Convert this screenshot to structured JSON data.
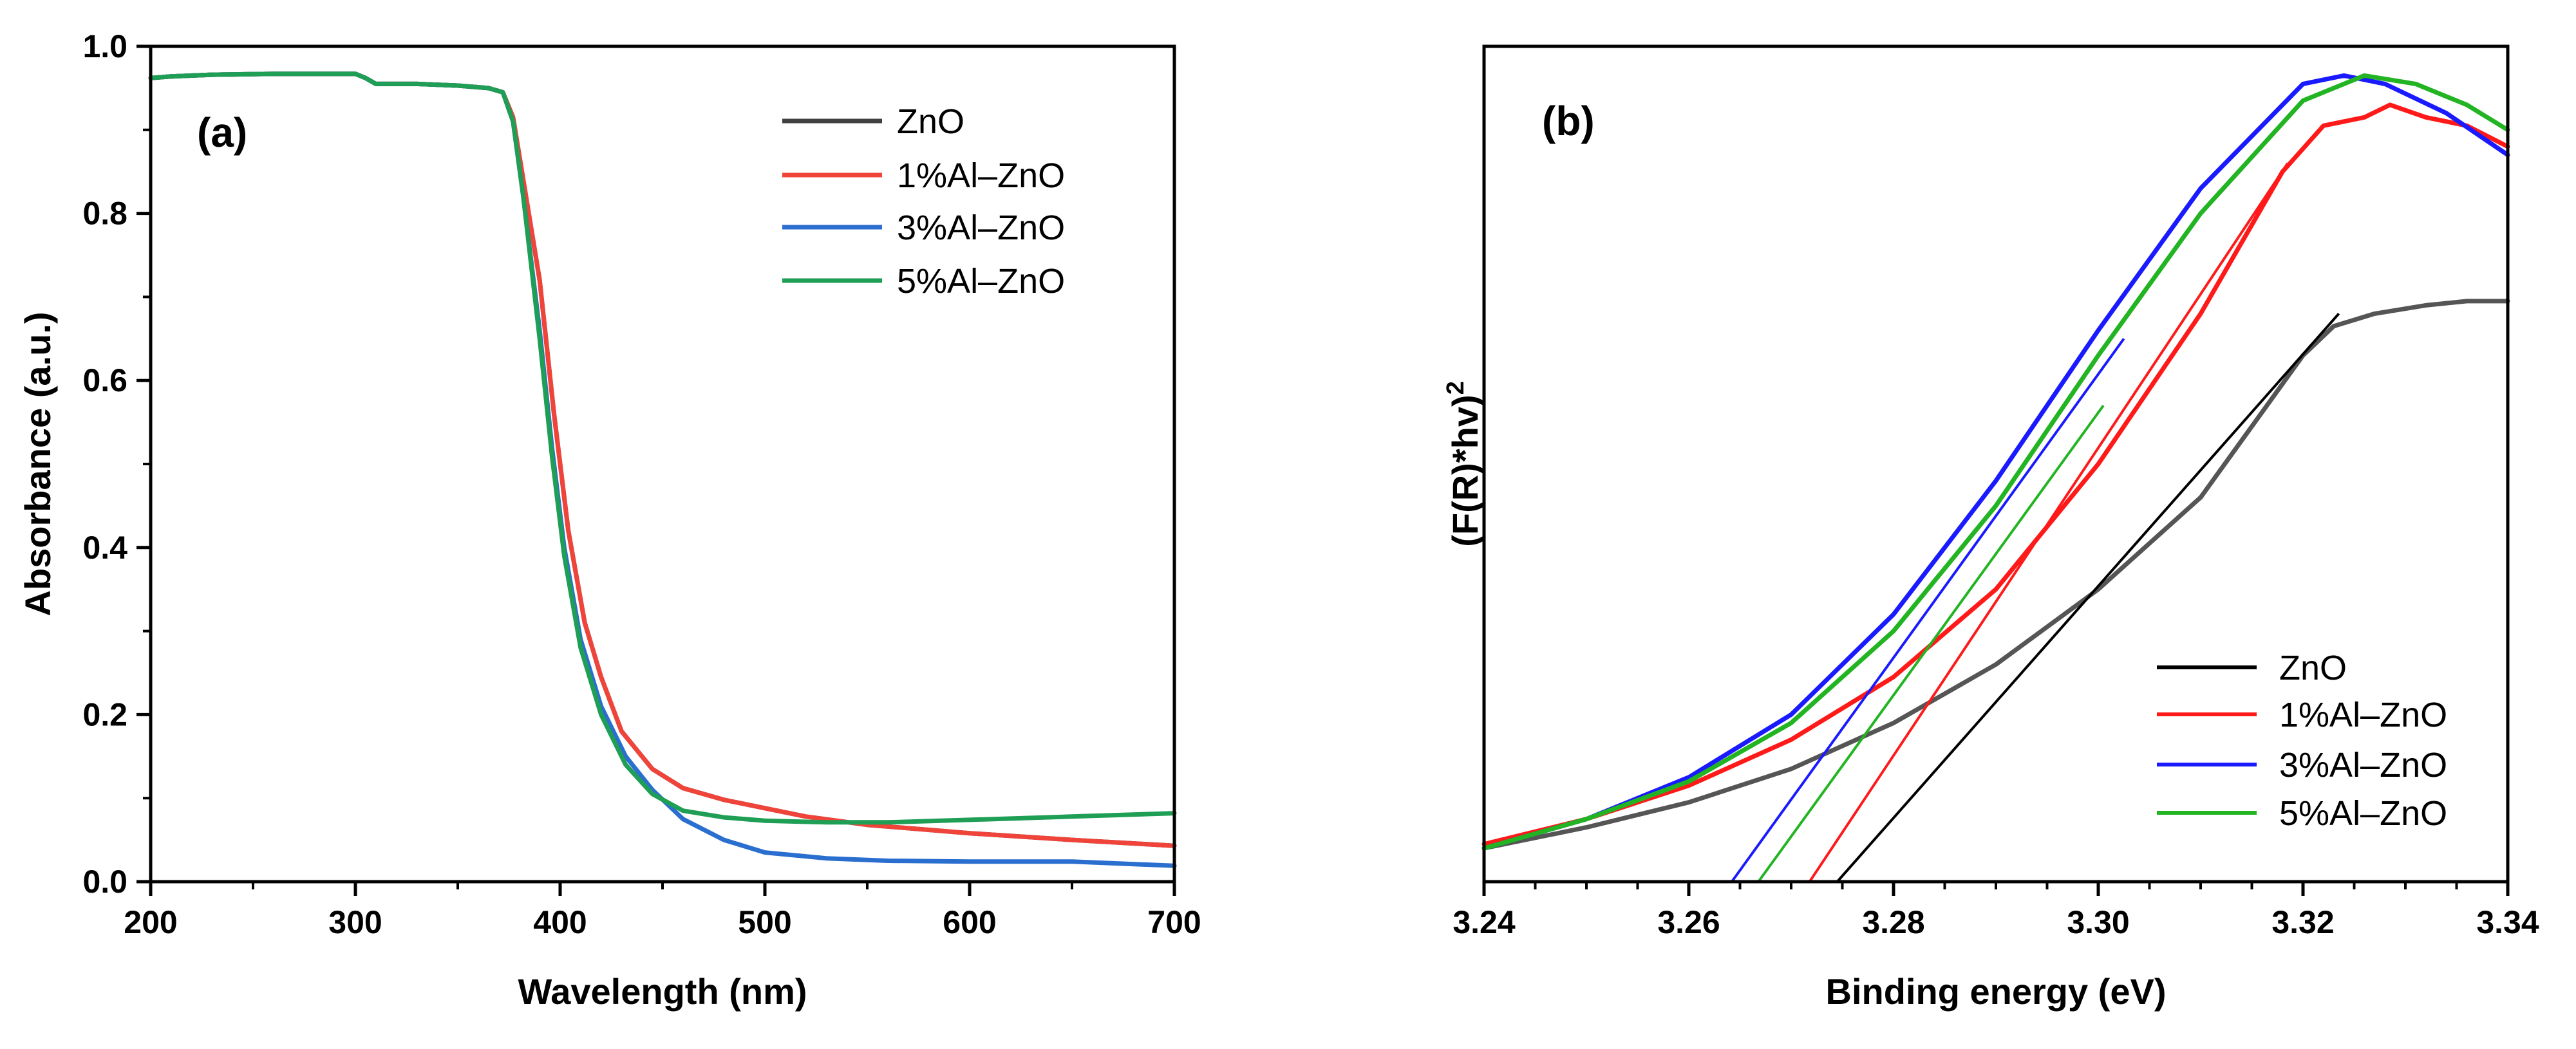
{
  "chart_data": [
    {
      "type": "line",
      "panel_label": "(a)",
      "xlabel": "Wavelength (nm)",
      "ylabel": "Absorbance (a.u.)",
      "xlim": [
        200,
        700
      ],
      "ylim": [
        0,
        1.0
      ],
      "xticks": [
        200,
        300,
        400,
        500,
        600,
        700
      ],
      "xtick_labels": [
        "200",
        "300",
        "400",
        "500",
        "600",
        "700"
      ],
      "yticks": [
        0,
        0.2,
        0.4,
        0.6,
        0.8,
        1.0
      ],
      "ytick_labels": [
        "0.0",
        "0.2",
        "0.4",
        "0.6",
        "0.8",
        "1.0"
      ],
      "legend_position": "top-right",
      "series": [
        {
          "name": "ZnO",
          "color": "#404040",
          "x": [
            200,
            210,
            230,
            260,
            290,
            300,
            305,
            310,
            330,
            350,
            365,
            372,
            377,
            382,
            390,
            397,
            404,
            412,
            420,
            430,
            445,
            460,
            480,
            500,
            520,
            550,
            600,
            650,
            700
          ],
          "y": [
            0.962,
            0.964,
            0.966,
            0.967,
            0.967,
            0.967,
            0.962,
            0.955,
            0.955,
            0.953,
            0.95,
            0.945,
            0.915,
            0.84,
            0.72,
            0.56,
            0.42,
            0.31,
            0.245,
            0.18,
            0.135,
            0.112,
            0.098,
            0.088,
            0.078,
            0.068,
            0.058,
            0.05,
            0.043
          ]
        },
        {
          "name": "1%Al–ZnO",
          "color": "#f0443a",
          "x": [
            200,
            210,
            230,
            260,
            290,
            300,
            305,
            310,
            330,
            350,
            365,
            372,
            377,
            382,
            390,
            397,
            404,
            412,
            420,
            430,
            445,
            460,
            480,
            500,
            520,
            550,
            600,
            650,
            700
          ],
          "y": [
            0.962,
            0.964,
            0.966,
            0.967,
            0.967,
            0.967,
            0.962,
            0.955,
            0.955,
            0.953,
            0.95,
            0.945,
            0.915,
            0.84,
            0.72,
            0.56,
            0.42,
            0.31,
            0.245,
            0.18,
            0.135,
            0.112,
            0.098,
            0.088,
            0.078,
            0.068,
            0.058,
            0.05,
            0.043
          ]
        },
        {
          "name": "3%Al–ZnO",
          "color": "#2a6fcf",
          "x": [
            200,
            210,
            230,
            260,
            290,
            300,
            305,
            310,
            330,
            350,
            365,
            372,
            377,
            382,
            390,
            396,
            402,
            410,
            420,
            432,
            445,
            460,
            480,
            500,
            530,
            560,
            600,
            650,
            670,
            700
          ],
          "y": [
            0.962,
            0.964,
            0.966,
            0.967,
            0.967,
            0.967,
            0.962,
            0.955,
            0.955,
            0.953,
            0.95,
            0.945,
            0.91,
            0.82,
            0.66,
            0.52,
            0.4,
            0.29,
            0.21,
            0.15,
            0.11,
            0.075,
            0.05,
            0.035,
            0.028,
            0.025,
            0.024,
            0.024,
            0.022,
            0.019
          ]
        },
        {
          "name": "5%Al–ZnO",
          "color": "#1f9e55",
          "x": [
            200,
            210,
            230,
            260,
            290,
            300,
            305,
            310,
            330,
            350,
            365,
            372,
            377,
            382,
            390,
            396,
            402,
            410,
            420,
            432,
            445,
            460,
            480,
            500,
            530,
            560,
            600,
            650,
            700
          ],
          "y": [
            0.962,
            0.964,
            0.966,
            0.967,
            0.967,
            0.967,
            0.962,
            0.955,
            0.955,
            0.953,
            0.95,
            0.945,
            0.91,
            0.82,
            0.65,
            0.51,
            0.39,
            0.28,
            0.2,
            0.14,
            0.105,
            0.085,
            0.077,
            0.073,
            0.071,
            0.071,
            0.074,
            0.078,
            0.082
          ]
        }
      ]
    },
    {
      "type": "line",
      "panel_label": "(b)",
      "xlabel": "Binding energy (eV)",
      "ylabel_main": "(F(R)*hv)",
      "ylabel_sup": "2",
      "xlim": [
        3.24,
        3.34
      ],
      "ylim": [
        0,
        1.0
      ],
      "xticks": [
        3.24,
        3.26,
        3.28,
        3.3,
        3.32,
        3.34
      ],
      "xtick_labels": [
        "3.24",
        "3.26",
        "3.28",
        "3.30",
        "3.32",
        "3.34"
      ],
      "yticks": [],
      "legend_position": "bottom-right",
      "series": [
        {
          "name": "ZnO",
          "color": "#000000",
          "line_color": "#555555",
          "x": [
            3.24,
            3.25,
            3.26,
            3.27,
            3.28,
            3.29,
            3.3,
            3.31,
            3.32,
            3.323,
            3.327,
            3.332,
            3.336,
            3.34
          ],
          "y": [
            0.04,
            0.065,
            0.095,
            0.135,
            0.19,
            0.26,
            0.35,
            0.46,
            0.63,
            0.665,
            0.68,
            0.69,
            0.695,
            0.695
          ],
          "fit_x": [
            3.2745,
            3.3235
          ],
          "fit_y": [
            0.0,
            0.68
          ]
        },
        {
          "name": "1%Al–ZnO",
          "color": "#ff1a1a",
          "x": [
            3.24,
            3.25,
            3.26,
            3.27,
            3.28,
            3.29,
            3.3,
            3.31,
            3.318,
            3.322,
            3.326,
            3.3285,
            3.332,
            3.336,
            3.34
          ],
          "y": [
            0.045,
            0.075,
            0.115,
            0.17,
            0.245,
            0.35,
            0.5,
            0.68,
            0.85,
            0.905,
            0.915,
            0.93,
            0.915,
            0.905,
            0.88
          ],
          "fit_x": [
            3.2718,
            3.3185
          ],
          "fit_y": [
            0.0,
            0.86
          ]
        },
        {
          "name": "3%Al–ZnO",
          "color": "#1a1aff",
          "x": [
            3.24,
            3.25,
            3.26,
            3.27,
            3.28,
            3.29,
            3.3,
            3.31,
            3.32,
            3.324,
            3.328,
            3.334,
            3.34
          ],
          "y": [
            0.04,
            0.075,
            0.125,
            0.2,
            0.32,
            0.48,
            0.66,
            0.83,
            0.955,
            0.965,
            0.955,
            0.92,
            0.87
          ],
          "fit_x": [
            3.2642,
            3.3025
          ],
          "fit_y": [
            0.0,
            0.65
          ]
        },
        {
          "name": "5%Al–ZnO",
          "color": "#22b422",
          "x": [
            3.24,
            3.25,
            3.26,
            3.27,
            3.28,
            3.29,
            3.3,
            3.31,
            3.32,
            3.326,
            3.331,
            3.336,
            3.34
          ],
          "y": [
            0.04,
            0.075,
            0.12,
            0.19,
            0.3,
            0.45,
            0.63,
            0.8,
            0.935,
            0.965,
            0.955,
            0.93,
            0.9
          ],
          "fit_x": [
            3.2668,
            3.3005
          ],
          "fit_y": [
            0.0,
            0.57
          ]
        }
      ]
    }
  ]
}
